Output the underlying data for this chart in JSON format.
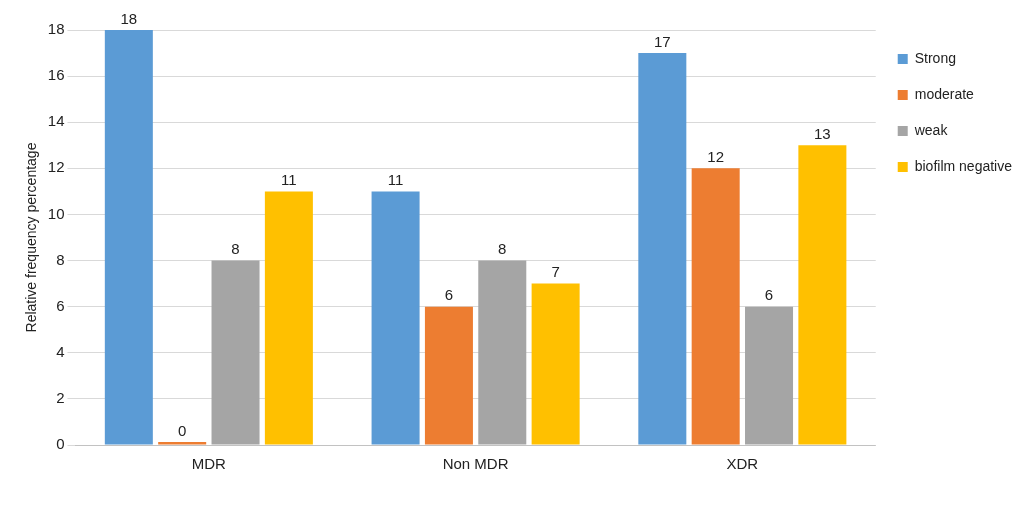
{
  "chart_data": {
    "type": "bar",
    "ylabel": "Relative frequency percentage",
    "categories": [
      "MDR",
      "Non MDR",
      "XDR"
    ],
    "series": [
      {
        "name": "Strong",
        "color": "#5b9bd5",
        "values": [
          18,
          11,
          17
        ]
      },
      {
        "name": "moderate",
        "color": "#ed7d31",
        "values": [
          0,
          6,
          12
        ]
      },
      {
        "name": "weak",
        "color": "#a5a5a5",
        "values": [
          8,
          8,
          6
        ]
      },
      {
        "name": "biofilm negative",
        "color": "#ffc000",
        "values": [
          11,
          7,
          13
        ]
      }
    ],
    "ylim": [
      0,
      18
    ],
    "yticks": [
      0,
      2,
      4,
      6,
      8,
      10,
      12,
      14,
      16,
      18
    ],
    "grid": "y",
    "legend": "top right",
    "data_labels": true
  }
}
